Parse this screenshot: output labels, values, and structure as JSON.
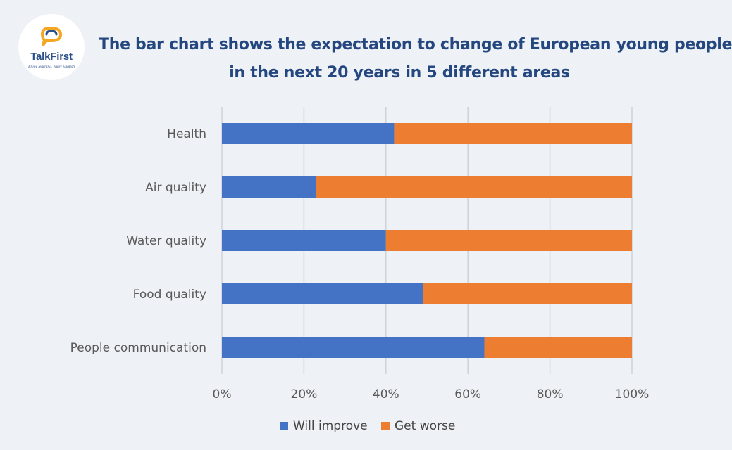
{
  "logo": {
    "name": "TalkFirst",
    "tagline": "Enjoy learning, enjoy English",
    "colors": {
      "orange": "#f5a623",
      "blue": "#2b4f8a"
    }
  },
  "title": {
    "line1": "The bar chart shows the expectation to change of European young people",
    "line2": "in the next 20 years in 5 different areas"
  },
  "chart_data": {
    "type": "bar",
    "orientation": "horizontal",
    "stacked": true,
    "title": "The bar chart shows the expectation to change of European young people in the next 20 years in 5 different areas",
    "categories": [
      "Health",
      "Air quality",
      "Water quality",
      "Food quality",
      "People communication"
    ],
    "series": [
      {
        "name": "Will improve",
        "color": "#4472c4",
        "values": [
          42,
          23,
          40,
          49,
          64
        ]
      },
      {
        "name": "Get worse",
        "color": "#ed7d31",
        "values": [
          58,
          77,
          60,
          51,
          36
        ]
      }
    ],
    "xlim": [
      0,
      100
    ],
    "xticks": [
      0,
      20,
      40,
      60,
      80,
      100
    ],
    "xtick_labels": [
      "0%",
      "20%",
      "40%",
      "60%",
      "80%",
      "100%"
    ],
    "xlabel": "",
    "ylabel": "",
    "grid": true,
    "legend_position": "bottom"
  }
}
